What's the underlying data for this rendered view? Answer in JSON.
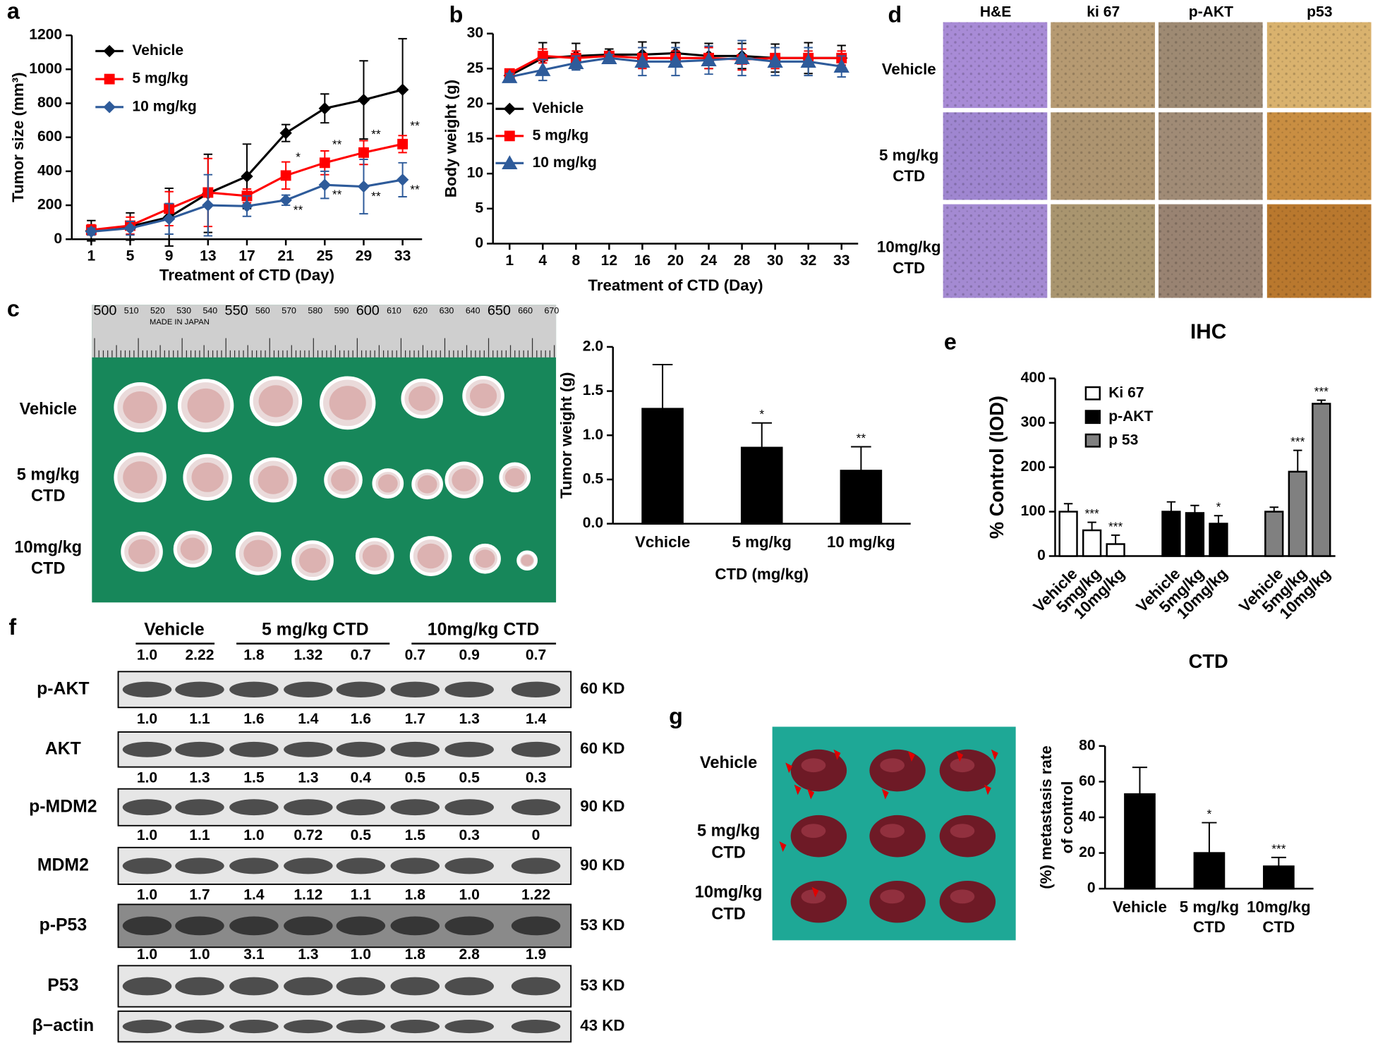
{
  "panel_labels": [
    "a",
    "b",
    "c",
    "d",
    "e",
    "f",
    "g"
  ],
  "chart_data": [
    {
      "type": "line",
      "y_label": "Tumor size (mm³)",
      "x_label": "Treatment of CTD (Day)",
      "x": [
        1,
        5,
        9,
        13,
        17,
        21,
        25,
        29,
        33
      ],
      "xlim": [
        -1,
        35
      ],
      "xticks": [
        1,
        5,
        9,
        13,
        17,
        21,
        25,
        29,
        33
      ],
      "ylim": [
        0,
        1200
      ],
      "yticks": [
        0,
        200,
        400,
        600,
        800,
        1000,
        1200
      ],
      "series": [
        {
          "name": "Vehicle",
          "color": "#000000",
          "marker": "diamond",
          "values": [
            50,
            75,
            130,
            270,
            370,
            625,
            770,
            820,
            880
          ],
          "errors": [
            60,
            80,
            170,
            230,
            190,
            50,
            85,
            230,
            300
          ],
          "significance": [
            null,
            null,
            null,
            null,
            null,
            null,
            null,
            null,
            null
          ]
        },
        {
          "name": "5 mg/kg",
          "color": "#ff0000",
          "marker": "square",
          "values": [
            55,
            80,
            180,
            275,
            255,
            375,
            450,
            510,
            560
          ],
          "errors": [
            30,
            50,
            100,
            200,
            40,
            80,
            70,
            70,
            50
          ],
          "significance": [
            null,
            null,
            null,
            null,
            null,
            "*",
            "**",
            "**",
            "**"
          ]
        },
        {
          "name": "10 mg/kg",
          "color": "#2e5b9a",
          "marker": "diamond",
          "values": [
            45,
            65,
            120,
            200,
            195,
            230,
            320,
            310,
            350
          ],
          "errors": [
            20,
            40,
            90,
            180,
            60,
            30,
            80,
            160,
            100
          ],
          "significance": [
            null,
            null,
            null,
            null,
            null,
            "**",
            "**",
            "**",
            "**"
          ]
        }
      ]
    },
    {
      "type": "line",
      "y_label": "Body weight (g)",
      "x_label": "Treatment of CTD (Day)",
      "categories": [
        "1",
        "4",
        "8",
        "12",
        "16",
        "20",
        "24",
        "28",
        "30",
        "32",
        "33"
      ],
      "ylim": [
        0,
        30
      ],
      "yticks": [
        0,
        5,
        10,
        15,
        20,
        25,
        30
      ],
      "series": [
        {
          "name": "Vehicle",
          "color": "#000000",
          "marker": "diamond",
          "values": [
            24,
            26.5,
            26.8,
            27,
            27,
            27.2,
            26.8,
            26.8,
            26.5,
            26.5,
            26.5
          ],
          "errors": [
            0.5,
            2.2,
            1.8,
            0.8,
            1.8,
            1.5,
            1.8,
            1.8,
            2,
            2.2,
            1.8
          ]
        },
        {
          "name": "5 mg/kg",
          "color": "#ff0000",
          "marker": "square",
          "values": [
            24.3,
            26.8,
            26.5,
            26.8,
            26.5,
            26.5,
            26.5,
            26.3,
            26.5,
            26.5,
            26.5
          ],
          "errors": [
            0.5,
            1,
            1,
            0.5,
            1.5,
            1,
            1.5,
            1.5,
            1.5,
            1,
            1
          ]
        },
        {
          "name": "10 mg/kg",
          "color": "#2e5b9a",
          "marker": "triangle",
          "values": [
            23.8,
            24.8,
            25.8,
            26.5,
            26,
            26,
            26.2,
            26.5,
            26,
            26,
            25.3
          ],
          "errors": [
            0.5,
            1.5,
            1,
            0.5,
            2,
            2,
            2,
            2.5,
            2,
            2,
            1.5
          ]
        }
      ]
    },
    {
      "type": "bar",
      "y_label": [
        "Tumor weight (g)"
      ],
      "x_label": "CTD (mg/kg)",
      "color": "#000000",
      "categories": [
        [
          "Vchicle"
        ],
        [
          "5 mg/kg"
        ],
        [
          "10 mg/kg"
        ]
      ],
      "values": [
        1.3,
        0.86,
        0.6
      ],
      "errors": [
        0.5,
        0.28,
        0.27
      ],
      "significance": [
        null,
        "*",
        "**"
      ],
      "ylim": [
        0,
        2
      ],
      "yticks": [
        {
          "value": 0,
          "label": "0.0"
        },
        0.5,
        {
          "value": 1,
          "label": "1.0"
        },
        1.5,
        {
          "value": 2,
          "label": "2.0"
        }
      ]
    },
    {
      "type": "bar",
      "title": "IHC",
      "y_label": [
        "% Control (IOD)"
      ],
      "x_label": "CTD",
      "categories": [
        "Vehicle",
        "5mg/kg",
        "10mg/kg"
      ],
      "ylim": [
        0,
        400
      ],
      "yticks": [
        0,
        100,
        200,
        300,
        400
      ],
      "series": [
        {
          "name": "Ki 67",
          "color": "#ffffff",
          "values": [
            100,
            58,
            27
          ],
          "errors": [
            18,
            18,
            20
          ],
          "significance": [
            null,
            "***",
            "***"
          ]
        },
        {
          "name": "p-AKT",
          "color": "#000000",
          "values": [
            100,
            97,
            73
          ],
          "errors": [
            22,
            17,
            18
          ],
          "significance": [
            null,
            null,
            "*"
          ]
        },
        {
          "name": "p 53",
          "color": "#808080",
          "values": [
            100,
            190,
            343
          ],
          "errors": [
            10,
            48,
            8
          ],
          "significance": [
            null,
            "***",
            "***"
          ]
        }
      ]
    },
    {
      "type": "bar",
      "y_label": [
        "(%) metastasis rate",
        "of control"
      ],
      "color": "#000000",
      "categories": [
        [
          "Vehicle"
        ],
        [
          "5 mg/kg",
          "CTD"
        ],
        [
          "10mg/kg",
          "CTD"
        ]
      ],
      "values": [
        53,
        20,
        12.5
      ],
      "errors": [
        15,
        17,
        5
      ],
      "significance": [
        null,
        "*",
        "***"
      ],
      "ylim": [
        0,
        80
      ],
      "yticks": [
        0,
        20,
        40,
        60,
        80
      ]
    }
  ],
  "ihc_images": {
    "columns": [
      "H&E",
      "ki 67",
      "p-AKT",
      "p53"
    ],
    "rows": [
      [
        "Vehicle"
      ],
      [
        "5 mg/kg",
        "CTD"
      ],
      [
        "10mg/kg",
        "CTD"
      ]
    ]
  },
  "tumor_photo": {
    "ruler": [
      "500",
      "510",
      "520",
      "530",
      "540",
      "550",
      "560",
      "570",
      "580",
      "590",
      "600",
      "610",
      "620",
      "630",
      "640",
      "650",
      "660",
      "670"
    ],
    "ruler_note": "MADE IN JAPAN",
    "rows": [
      [
        "Vehicle"
      ],
      [
        "5 mg/kg",
        "CTD"
      ],
      [
        "10mg/kg",
        "CTD"
      ]
    ]
  },
  "western_blot": {
    "groups": [
      "Vehicle",
      "5 mg/kg CTD",
      "10mg/kg CTD"
    ],
    "rows": [
      {
        "name": "p-AKT",
        "size": "60 KD",
        "ratios": [
          "1.0",
          "2.22",
          "1.8",
          "1.32",
          "0.7",
          "0.7",
          "0.9",
          "0.7"
        ]
      },
      {
        "name": "AKT",
        "size": "60 KD",
        "ratios": [
          "1.0",
          "1.1",
          "1.6",
          "1.4",
          "1.6",
          "1.7",
          "1.3",
          "1.4"
        ]
      },
      {
        "name": "p-MDM2",
        "size": "90 KD",
        "ratios": [
          "1.0",
          "1.3",
          "1.5",
          "1.3",
          "0.4",
          "0.5",
          "0.5",
          "0.3"
        ]
      },
      {
        "name": "MDM2",
        "size": "90 KD",
        "ratios": [
          "1.0",
          "1.1",
          "1.0",
          "0.72",
          "0.5",
          "1.5",
          "0.3",
          "0"
        ]
      },
      {
        "name": "p-P53",
        "size": "53 KD",
        "ratios": [
          "1.0",
          "1.7",
          "1.4",
          "1.12",
          "1.1",
          "1.8",
          "1.0",
          "1.22"
        ]
      },
      {
        "name": "P53",
        "size": "53 KD",
        "ratios": [
          "1.0",
          "1.0",
          "3.1",
          "1.3",
          "1.0",
          "1.8",
          "2.8",
          "1.9"
        ]
      },
      {
        "name": "β−actin",
        "size": "43 KD"
      }
    ]
  },
  "metastasis_photo": {
    "rows": [
      [
        "Vehicle"
      ],
      [
        "5 mg/kg",
        "CTD"
      ],
      [
        "10mg/kg",
        "CTD"
      ]
    ]
  }
}
